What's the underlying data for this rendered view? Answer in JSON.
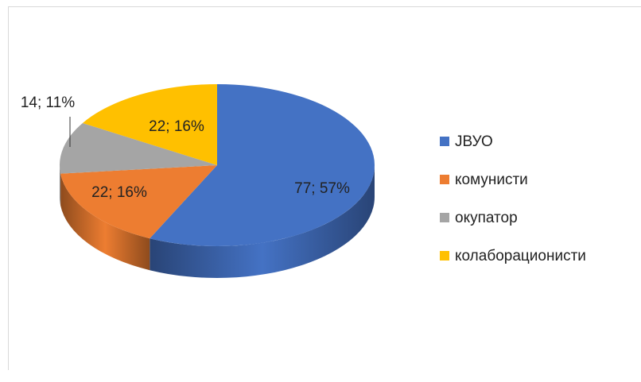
{
  "chart_data": {
    "type": "pie3d",
    "categories": [
      "ЈВУО",
      "комунисти",
      "окупатор",
      "колаборационисти"
    ],
    "values": [
      77,
      22,
      14,
      22
    ],
    "value_labels": [
      "77; 57%",
      "22; 16%",
      "14; 11%",
      "22; 16%"
    ],
    "colors": [
      "#4472c4",
      "#ed7d31",
      "#a5a5a5",
      "#ffc000"
    ],
    "legend": "right"
  }
}
